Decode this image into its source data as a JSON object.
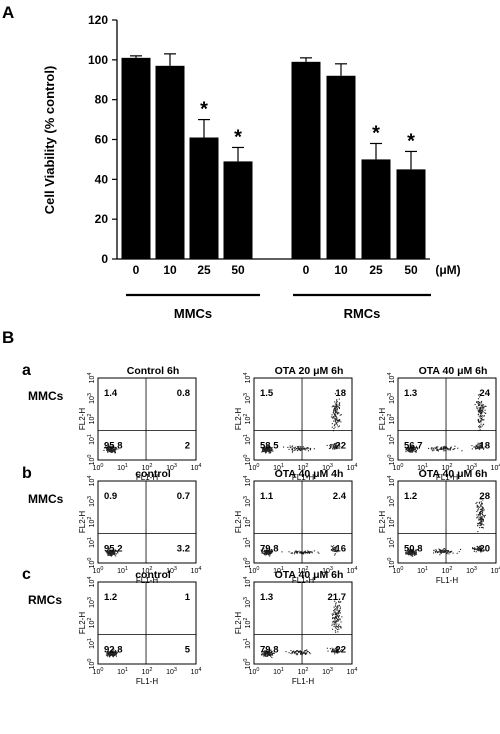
{
  "panel_a_label": "A",
  "panel_b_label": "B",
  "chart_data": {
    "type": "bar",
    "ylabel": "Cell Viability (% control)",
    "xunit": "(μM)",
    "ylim": [
      0,
      120
    ],
    "yticks": [
      "0",
      "20",
      "40",
      "60",
      "80",
      "100",
      "120"
    ],
    "significance_marker": "*",
    "groups": [
      {
        "name": "MMCs",
        "categories": [
          "0",
          "10",
          "25",
          "50"
        ],
        "values": [
          101,
          97,
          61,
          49
        ],
        "errors": [
          1,
          6,
          9,
          7
        ],
        "significant": [
          false,
          false,
          true,
          true
        ]
      },
      {
        "name": "RMCs",
        "categories": [
          "0",
          "10",
          "25",
          "50"
        ],
        "values": [
          99,
          92,
          50,
          45
        ],
        "errors": [
          2,
          6,
          8,
          9
        ],
        "significant": [
          false,
          false,
          true,
          true
        ]
      }
    ]
  },
  "flow_rows": [
    {
      "row_label": "a",
      "cell_label": "MMCs",
      "plots": [
        {
          "title": "Control  6h",
          "q": [
            "1.4",
            "0.8",
            "95.8",
            "2"
          ],
          "pattern": "control"
        },
        {
          "title": "OTA 20 μM 6h",
          "q": [
            "1.5",
            "18",
            "58.5",
            "22"
          ],
          "pattern": "late"
        },
        {
          "title": "OTA 40 μM 6h",
          "q": [
            "1.3",
            "24",
            "56.7",
            "18"
          ],
          "pattern": "late"
        }
      ]
    },
    {
      "row_label": "b",
      "cell_label": "MMCs",
      "plots": [
        {
          "title": "control",
          "q": [
            "0.9",
            "0.7",
            "95.2",
            "3.2"
          ],
          "pattern": "control"
        },
        {
          "title": "OTA 40 μM 4h",
          "q": [
            "1.1",
            "2.4",
            "79.8",
            "16"
          ],
          "pattern": "early"
        },
        {
          "title": "OTA 40 μM 6h",
          "q": [
            "1.2",
            "28",
            "50.8",
            "20"
          ],
          "pattern": "late"
        }
      ]
    },
    {
      "row_label": "c",
      "cell_label": "RMCs",
      "plots": [
        {
          "title": "control",
          "q": [
            "1.2",
            "1",
            "92.8",
            "5"
          ],
          "pattern": "control"
        },
        {
          "title": "OTA 40 μM 6h",
          "q": [
            "1.3",
            "21.7",
            "79.8",
            "22"
          ],
          "pattern": "late"
        }
      ]
    }
  ],
  "axis_text": {
    "xlabel": "FL1-H",
    "ylabel": "FL2-H",
    "ticks": [
      "10",
      "10",
      "10",
      "10",
      "10"
    ],
    "exps": [
      "0",
      "1",
      "2",
      "3",
      "4"
    ]
  }
}
